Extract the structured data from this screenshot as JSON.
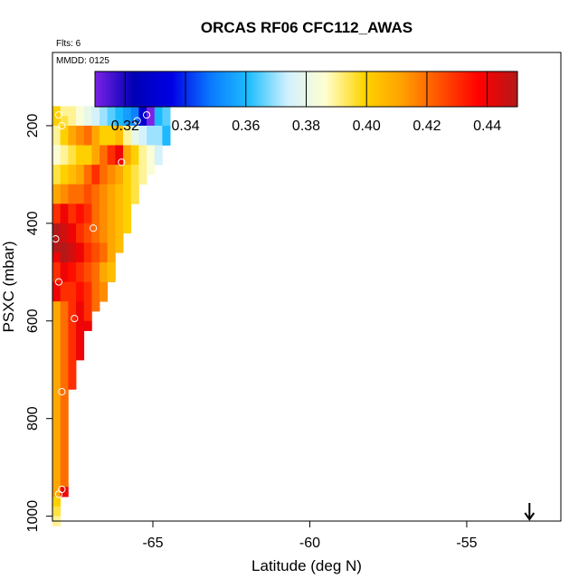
{
  "chart_data": {
    "type": "heatmap",
    "title": "ORCAS RF06 CFC112_AWAS",
    "note_flights": "Flts: 6",
    "note_date": "MMDD: 0125",
    "xlabel": "Latitude (deg N)",
    "ylabel": "PSXC (mbar)",
    "xlim": [
      -68.2,
      -52.0
    ],
    "ylim": [
      1010,
      50
    ],
    "y_reversed": true,
    "x_ticks": [
      -65,
      -60,
      -55
    ],
    "x_tick_labels": [
      "-65",
      "-60",
      "-55"
    ],
    "y_ticks": [
      200,
      400,
      600,
      800,
      1000
    ],
    "y_tick_labels": [
      "200",
      "400",
      "600",
      "800",
      "1000"
    ],
    "colorbar": {
      "min": 0.31,
      "max": 0.45,
      "ticks": [
        0.32,
        0.34,
        0.36,
        0.38,
        0.4,
        0.42,
        0.44
      ],
      "tick_labels": [
        "0.32",
        "0.34",
        "0.36",
        "0.38",
        "0.40",
        "0.42",
        "0.44"
      ],
      "colors": [
        "#7b22e6",
        "#0000b4",
        "#0000e6",
        "#0a78ff",
        "#1ebeff",
        "#d0f0ff",
        "#ffffd0",
        "#ffd400",
        "#ffa000",
        "#ff5000",
        "#ff0000",
        "#b41818"
      ]
    },
    "grid": {
      "x_start": -68.2,
      "x_step": 0.25,
      "p_start": 160,
      "p_step": 20,
      "rows": [
        [
          0.4,
          0.39,
          0.39,
          0.385,
          0.38,
          0.375,
          0.37,
          0.365,
          0.36,
          0.355,
          0.35,
          0.33,
          0.31,
          0.36,
          0.365
        ],
        [
          0.4,
          0.395,
          0.39,
          0.385,
          0.38,
          0.375,
          0.37,
          0.365,
          0.36,
          0.355,
          0.35,
          0.33,
          0.31,
          0.36,
          0.365
        ],
        [
          0.39,
          0.4,
          0.41,
          0.415,
          0.42,
          0.41,
          0.4,
          0.4,
          0.405,
          0.39,
          0.38,
          0.375,
          0.37,
          0.37,
          0.36
        ],
        [
          0.39,
          0.4,
          0.41,
          0.415,
          0.42,
          0.41,
          0.4,
          0.4,
          0.405,
          0.39,
          0.38,
          0.375,
          0.37,
          0.37,
          0.36
        ],
        [
          0.385,
          0.39,
          0.395,
          0.4,
          0.4,
          0.41,
          0.42,
          0.43,
          0.44,
          0.41,
          0.4,
          0.39,
          0.385,
          0.375
        ],
        [
          0.385,
          0.39,
          0.395,
          0.4,
          0.4,
          0.41,
          0.42,
          0.43,
          0.44,
          0.41,
          0.4,
          0.39,
          0.385,
          0.375
        ],
        [
          0.395,
          0.4,
          0.405,
          0.41,
          0.42,
          0.43,
          0.42,
          0.415,
          0.41,
          0.4,
          0.395,
          0.39,
          0.385
        ],
        [
          0.395,
          0.4,
          0.405,
          0.41,
          0.42,
          0.43,
          0.42,
          0.415,
          0.41,
          0.4,
          0.395,
          0.39
        ],
        [
          0.41,
          0.415,
          0.42,
          0.42,
          0.425,
          0.42,
          0.415,
          0.41,
          0.405,
          0.4,
          0.395
        ],
        [
          0.41,
          0.415,
          0.42,
          0.42,
          0.425,
          0.42,
          0.415,
          0.41,
          0.405,
          0.4,
          0.395
        ],
        [
          0.43,
          0.44,
          0.43,
          0.435,
          0.43,
          0.42,
          0.415,
          0.41,
          0.405,
          0.4
        ],
        [
          0.43,
          0.44,
          0.43,
          0.435,
          0.43,
          0.42,
          0.415,
          0.41,
          0.405,
          0.4
        ],
        [
          0.45,
          0.445,
          0.44,
          0.43,
          0.425,
          0.42,
          0.415,
          0.41,
          0.405,
          0.4
        ],
        [
          0.45,
          0.445,
          0.44,
          0.43,
          0.425,
          0.42,
          0.415,
          0.41,
          0.405
        ],
        [
          0.45,
          0.45,
          0.445,
          0.44,
          0.43,
          0.425,
          0.42,
          0.41,
          0.405
        ],
        [
          0.44,
          0.45,
          0.445,
          0.44,
          0.43,
          0.425,
          0.42,
          0.41
        ],
        [
          0.43,
          0.44,
          0.435,
          0.43,
          0.425,
          0.42,
          0.41,
          0.405
        ],
        [
          0.43,
          0.44,
          0.435,
          0.43,
          0.425,
          0.42,
          0.41,
          0.405
        ],
        [
          0.44,
          0.43,
          0.43,
          0.435,
          0.43,
          0.42,
          0.415
        ],
        [
          0.44,
          0.43,
          0.43,
          0.435,
          0.43,
          0.42,
          0.415
        ],
        [
          0.41,
          0.42,
          0.43,
          0.44,
          0.43,
          0.42
        ],
        [
          0.41,
          0.42,
          0.43,
          0.44,
          0.43
        ],
        [
          0.41,
          0.42,
          0.43,
          0.44,
          0.44
        ],
        [
          0.41,
          0.42,
          0.43,
          0.44
        ],
        [
          0.41,
          0.42,
          0.43,
          0.44
        ],
        [
          0.41,
          0.42,
          0.43,
          0.44
        ],
        [
          0.41,
          0.42,
          0.43
        ],
        [
          0.41,
          0.42,
          0.43
        ],
        [
          0.41,
          0.42,
          0.43
        ],
        [
          0.41,
          0.42
        ],
        [
          0.41,
          0.42
        ],
        [
          0.41,
          0.42
        ],
        [
          0.41,
          0.42
        ],
        [
          0.41,
          0.42
        ],
        [
          0.41,
          0.42
        ],
        [
          0.41,
          0.42
        ],
        [
          0.41,
          0.42
        ],
        [
          0.41,
          0.42
        ],
        [
          0.41,
          0.42
        ],
        [
          0.41,
          0.44
        ],
        [
          0.4
        ],
        [
          0.395
        ],
        [
          0.39
        ]
      ]
    },
    "points": [
      {
        "x": -68.0,
        "y": 178
      },
      {
        "x": -67.9,
        "y": 200
      },
      {
        "x": -65.2,
        "y": 178
      },
      {
        "x": -64.0,
        "y": 178
      },
      {
        "x": -65.5,
        "y": 190
      },
      {
        "x": -66.0,
        "y": 275
      },
      {
        "x": -66.9,
        "y": 410
      },
      {
        "x": -68.1,
        "y": 432
      },
      {
        "x": -68.0,
        "y": 520
      },
      {
        "x": -67.5,
        "y": 595
      },
      {
        "x": -67.9,
        "y": 745
      },
      {
        "x": -67.9,
        "y": 945
      },
      {
        "x": -68.0,
        "y": 955
      }
    ],
    "arrow": {
      "x": -53.0,
      "direction": "down"
    }
  }
}
